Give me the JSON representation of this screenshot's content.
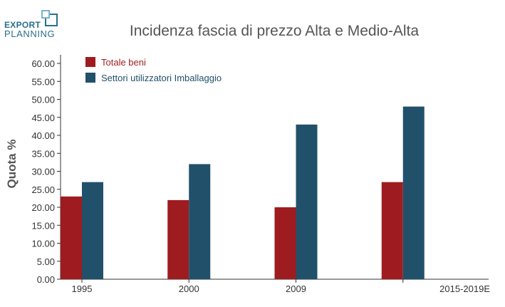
{
  "brand": {
    "line1": "EXPORT",
    "line2": "PLANNING"
  },
  "colors": {
    "series1": "#9e1c1f",
    "series2": "#21506a",
    "logo": "#2a6f8c"
  },
  "chart_data": {
    "type": "bar",
    "title": "Incidenza fascia di prezzo Alta e Medio-Alta",
    "xlabel": "",
    "ylabel": "Quota %",
    "categories": [
      "1995",
      "2000",
      "2009",
      "2015-2019E"
    ],
    "series": [
      {
        "name": "Totale beni",
        "values": [
          23,
          22,
          20,
          27
        ]
      },
      {
        "name": "Settori utilizzatori Imballaggio",
        "values": [
          27,
          32,
          43,
          48
        ]
      }
    ],
    "ylim": [
      0,
      60
    ],
    "yticks": [
      "0.00",
      "5.00",
      "10.00",
      "15.00",
      "20.00",
      "25.00",
      "30.00",
      "35.00",
      "40.00",
      "45.00",
      "50.00",
      "55.00",
      "60.00"
    ],
    "grid": false,
    "legend": "top-left"
  }
}
